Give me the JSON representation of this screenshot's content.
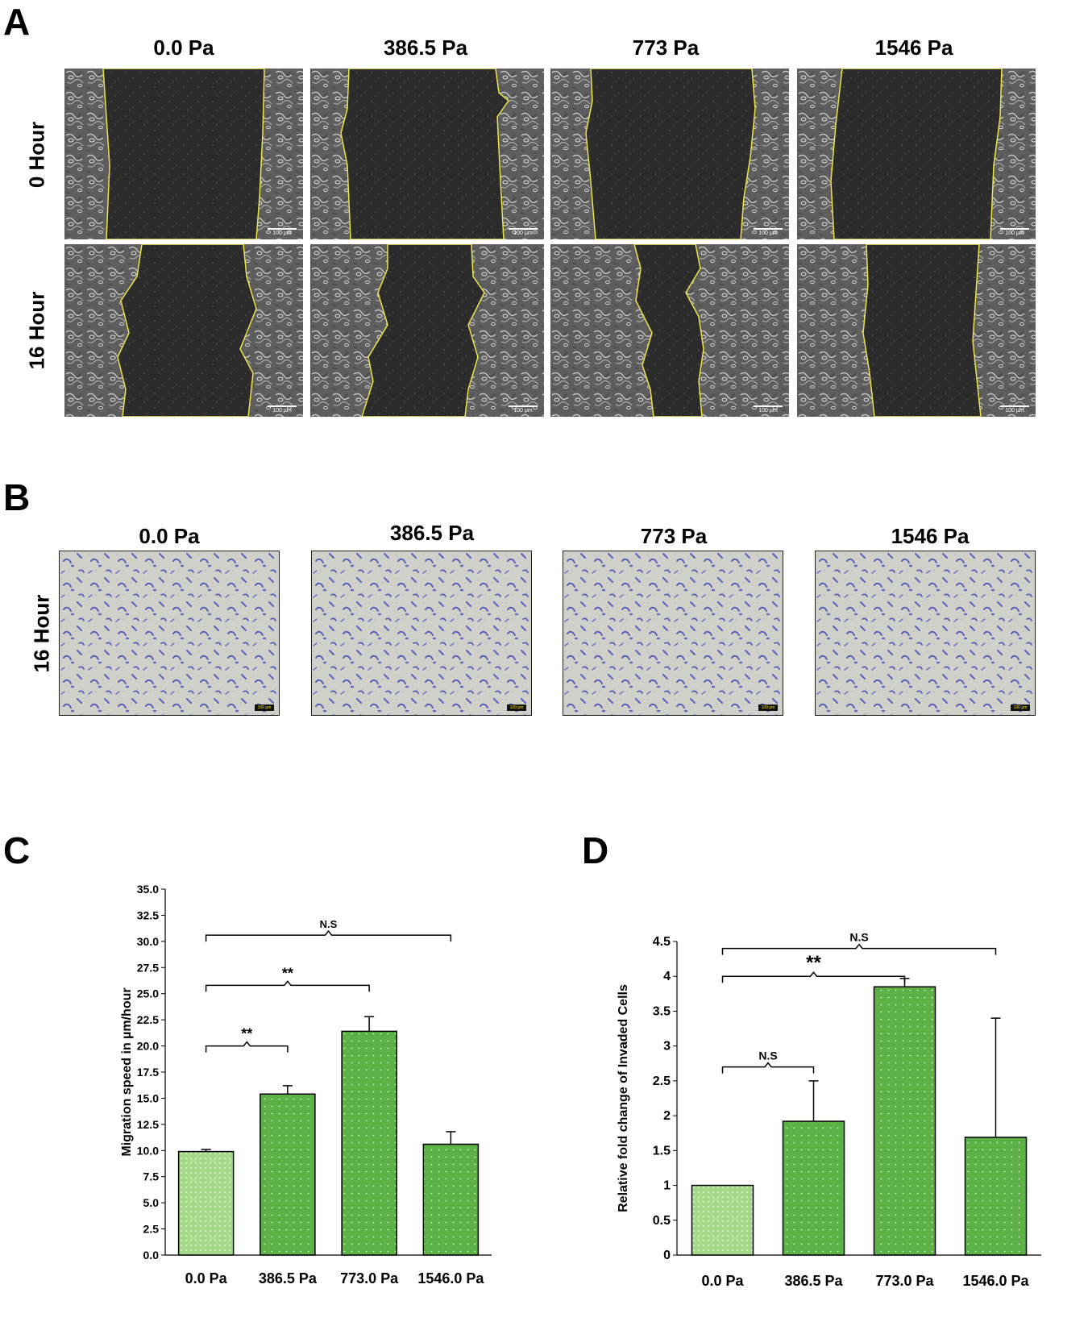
{
  "panel_a": {
    "label": "A",
    "columns": [
      "0.0 Pa",
      "386.5 Pa",
      "773 Pa",
      "1546 Pa"
    ],
    "rows": [
      "0 Hour",
      "16 Hour"
    ],
    "scale_bar": "100 µm"
  },
  "panel_b": {
    "label": "B",
    "columns": [
      "0.0 Pa",
      "386.5 Pa",
      "773 Pa",
      "1546 Pa"
    ],
    "row": "16 Hour",
    "scale_bar": "100 µm"
  },
  "colors": {
    "bar_light": "#a5d98a",
    "bar_main": "#5cb247",
    "outline": "#e8e44a",
    "stain": "#5a5fb5",
    "membrane": "#cfd0c9"
  },
  "chart_data": [
    {
      "panel": "C",
      "type": "bar",
      "categories": [
        "0.0 Pa",
        "386.5 Pa",
        "773.0 Pa",
        "1546.0 Pa"
      ],
      "values": [
        9.9,
        15.4,
        21.4,
        10.6
      ],
      "errors": [
        0.2,
        0.8,
        1.4,
        1.2
      ],
      "ylabel": "Migration speed in µm/hour",
      "ylim": [
        0,
        35
      ],
      "yticks": [
        "0.0",
        "2.5",
        "5.0",
        "7.5",
        "10.0",
        "12.5",
        "15.0",
        "17.5",
        "20.0",
        "22.5",
        "25.0",
        "27.5",
        "30.0",
        "32.5",
        "35.0"
      ],
      "brackets": [
        {
          "from": 0,
          "to": 1,
          "y": 20.0,
          "label": "**"
        },
        {
          "from": 0,
          "to": 2,
          "y": 25.8,
          "label": "**"
        },
        {
          "from": 0,
          "to": 3,
          "y": 30.6,
          "label": "N.S"
        }
      ]
    },
    {
      "panel": "D",
      "type": "bar",
      "categories": [
        "0.0 Pa",
        "386.5 Pa",
        "773.0 Pa",
        "1546.0 Pa"
      ],
      "values": [
        1.0,
        1.92,
        3.85,
        1.69
      ],
      "errors": [
        0,
        0.58,
        0.12,
        1.71
      ],
      "ylabel": "Relative fold change of Invaded Cells",
      "ylim": [
        0,
        4.5
      ],
      "yticks": [
        "0",
        "0.5",
        "1",
        "1.5",
        "2",
        "2.5",
        "3",
        "3.5",
        "4",
        "4.5"
      ],
      "brackets": [
        {
          "from": 0,
          "to": 1,
          "y": 2.7,
          "label": "N.S"
        },
        {
          "from": 0,
          "to": 2,
          "y": 4.0,
          "label": "**"
        },
        {
          "from": 0,
          "to": 3,
          "y": 4.4,
          "label": "N.S"
        }
      ]
    }
  ]
}
